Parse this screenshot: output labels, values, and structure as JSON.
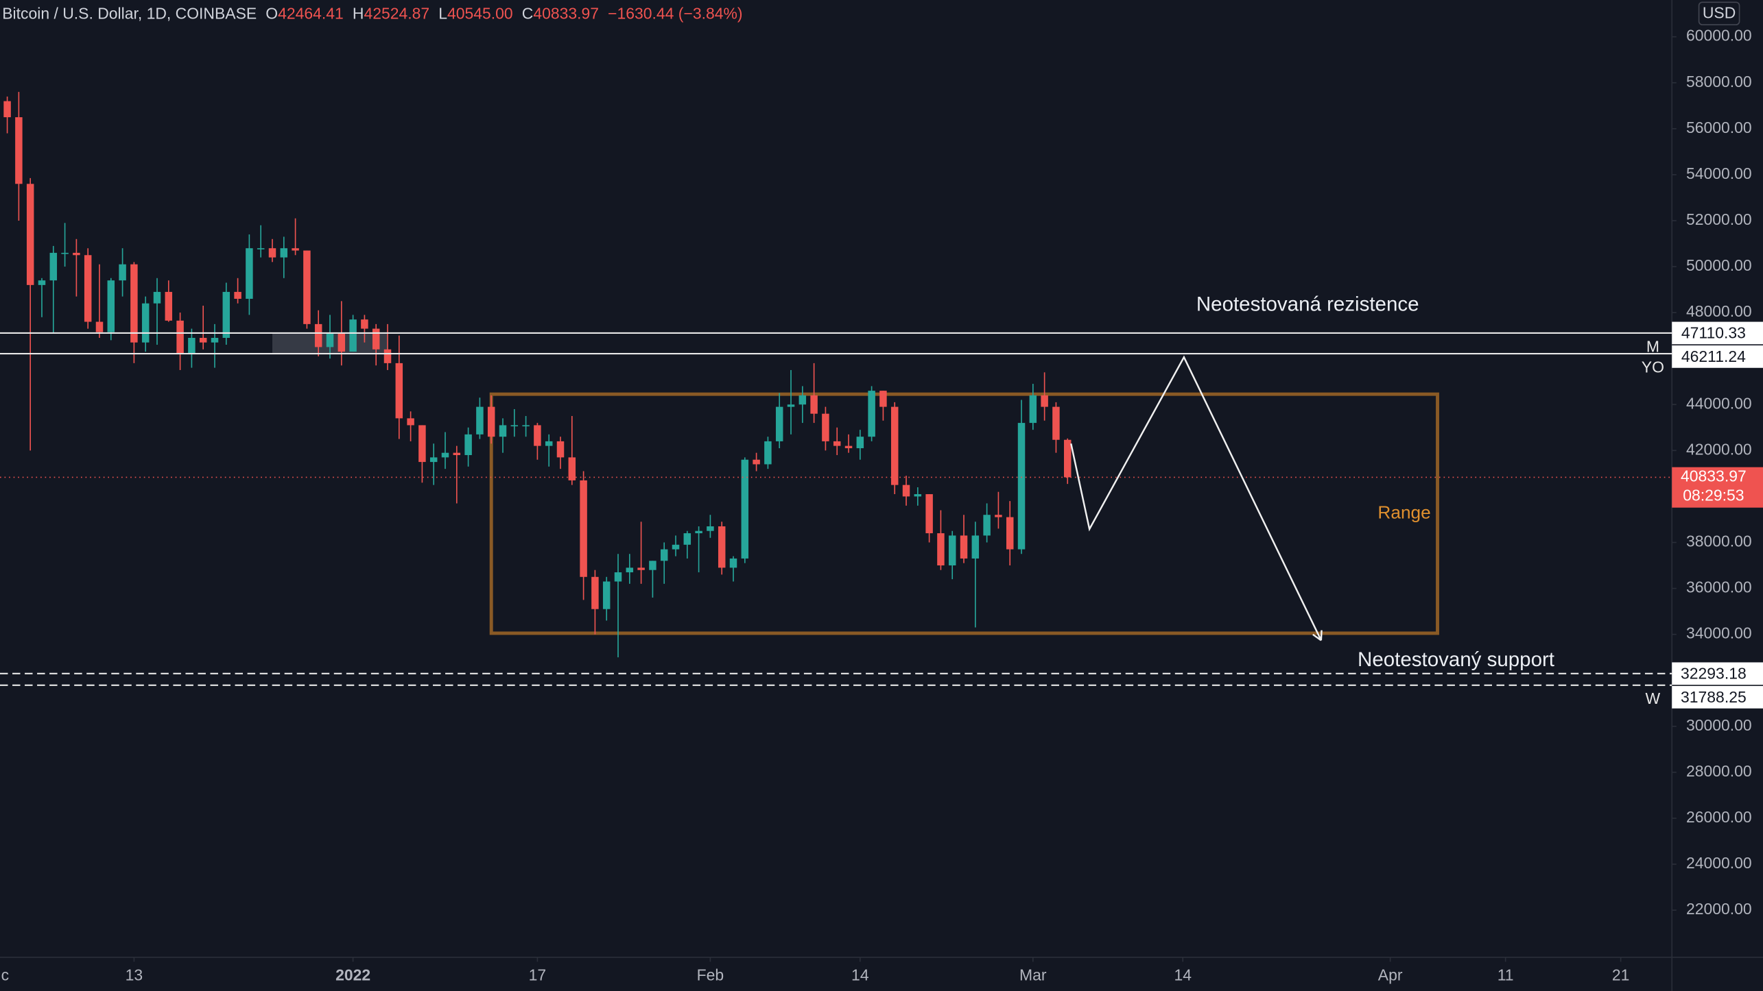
{
  "chart_data": {
    "type": "candlestick",
    "title": "Bitcoin / U.S. Dollar, 1D, COINBASE",
    "ohlc_legend": [
      {
        "key": "O",
        "label": "42464.41"
      },
      {
        "key": "H",
        "label": "42524.87"
      },
      {
        "key": "L",
        "label": "40545.00"
      },
      {
        "key": "C",
        "label": "40833.97"
      }
    ],
    "change": "−1630.44 (−3.84%)",
    "currency": "USD",
    "countdown": "08:29:53",
    "up_color": "#26a69a",
    "down_color": "#ef5350",
    "xlim": [
      -0.63,
      144.44
    ],
    "xticks": [
      {
        "value": -1,
        "label": "c"
      },
      {
        "value": 11,
        "label": "13"
      },
      {
        "value": 30,
        "label": "2022",
        "bold": true
      },
      {
        "value": 46,
        "label": "17"
      },
      {
        "value": 61,
        "label": "Feb"
      },
      {
        "value": 74,
        "label": "14"
      },
      {
        "value": 89,
        "label": "Mar"
      },
      {
        "value": 102,
        "label": "14"
      },
      {
        "value": 120,
        "label": "Apr"
      },
      {
        "value": 130,
        "label": "11"
      },
      {
        "value": 140,
        "label": "21"
      }
    ],
    "ylim": [
      19950,
      61600
    ],
    "yticks": [
      {
        "value": 22000,
        "label": "22000.00"
      },
      {
        "value": 24000,
        "label": "24000.00"
      },
      {
        "value": 26000,
        "label": "26000.00"
      },
      {
        "value": 28000,
        "label": "28000.00"
      },
      {
        "value": 30000,
        "label": "30000.00"
      },
      {
        "value": 34000,
        "label": "34000.00"
      },
      {
        "value": 36000,
        "label": "36000.00"
      },
      {
        "value": 38000,
        "label": "38000.00"
      },
      {
        "value": 42000,
        "label": "42000.00"
      },
      {
        "value": 44000,
        "label": "44000.00"
      },
      {
        "value": 48000,
        "label": "48000.00"
      },
      {
        "value": 50000,
        "label": "50000.00"
      },
      {
        "value": 52000,
        "label": "52000.00"
      },
      {
        "value": 54000,
        "label": "54000.00"
      },
      {
        "value": 56000,
        "label": "56000.00"
      },
      {
        "value": 58000,
        "label": "58000.00"
      },
      {
        "value": 60000,
        "label": "60000.00"
      }
    ],
    "open": [
      57200,
      56500,
      53600,
      49200,
      49400,
      50600,
      50600,
      50500,
      47600,
      47150,
      49400,
      50100,
      46700,
      48400,
      48900,
      47650,
      46200,
      46900,
      46700,
      46900,
      48900,
      48600,
      50800,
      50800,
      50400,
      50800,
      50700,
      47500,
      46500,
      47100,
      46300,
      47700,
      47300,
      46400,
      45800,
      43400,
      43100,
      41500,
      41700,
      41900,
      41800,
      42700,
      43900,
      42600,
      43100,
      43100,
      43100,
      42200,
      42400,
      41700,
      40700,
      36500,
      35100,
      36300,
      36700,
      36900,
      36800,
      37200,
      37700,
      37900,
      38400,
      38500,
      38700,
      36900,
      37300,
      41600,
      41400,
      42400,
      43900,
      44000,
      44400,
      43600,
      42400,
      42200,
      42100,
      42600,
      44600,
      43900,
      40500,
      40000,
      40100,
      38400,
      37000,
      38300,
      37300,
      38300,
      39200,
      39100,
      37700,
      43200,
      44400,
      43900,
      42464.41
    ],
    "high": [
      57400,
      57600,
      53850,
      49500,
      50900,
      51900,
      51200,
      50800,
      50100,
      49500,
      50800,
      50200,
      48700,
      49500,
      49400,
      48000,
      47300,
      48300,
      47500,
      49300,
      49500,
      51400,
      51800,
      51200,
      51300,
      52100,
      50700,
      48100,
      47900,
      48500,
      47900,
      47900,
      47500,
      47500,
      47000,
      43700,
      43100,
      42300,
      42800,
      42200,
      43000,
      44300,
      44400,
      43400,
      43800,
      43500,
      43200,
      42700,
      42600,
      43500,
      41100,
      36800,
      36500,
      37500,
      37500,
      38900,
      37200,
      38000,
      38300,
      38500,
      38700,
      39200,
      38900,
      37400,
      41700,
      41900,
      42600,
      44500,
      45500,
      44800,
      45800,
      43900,
      43000,
      42700,
      42900,
      44800,
      44600,
      44100,
      40900,
      40400,
      40100,
      39400,
      38500,
      39200,
      38900,
      39700,
      40200,
      39800,
      44200,
      44900,
      45400,
      44100,
      42524.87
    ],
    "low": [
      55800,
      52000,
      42000,
      47800,
      47100,
      50000,
      48700,
      47300,
      46900,
      46800,
      48700,
      45800,
      46300,
      46600,
      47600,
      45500,
      45600,
      46400,
      45600,
      46600,
      48400,
      47900,
      50400,
      50200,
      49500,
      50500,
      47300,
      46100,
      46000,
      45700,
      46300,
      46700,
      45700,
      45500,
      42500,
      42400,
      40600,
      40500,
      41200,
      39700,
      41300,
      42500,
      42300,
      41900,
      42600,
      42600,
      41600,
      41300,
      41200,
      40500,
      35500,
      34000,
      34600,
      33000,
      36200,
      36200,
      35600,
      36200,
      37400,
      37300,
      36700,
      38200,
      36600,
      36300,
      37100,
      41100,
      41200,
      42100,
      42700,
      43200,
      43200,
      42000,
      41800,
      41900,
      41600,
      42400,
      43300,
      40100,
      39600,
      39600,
      38000,
      36800,
      36400,
      37100,
      34300,
      38000,
      38600,
      37000,
      37500,
      42900,
      43300,
      41900,
      40545
    ],
    "close": [
      56500,
      53600,
      49200,
      49400,
      50600,
      50600,
      50500,
      47600,
      47150,
      49400,
      50100,
      46700,
      48400,
      48900,
      47650,
      46200,
      46900,
      46700,
      46900,
      48900,
      48600,
      50800,
      50800,
      50400,
      50800,
      50700,
      47500,
      46500,
      47100,
      46300,
      47700,
      47300,
      46400,
      45800,
      43400,
      43100,
      41500,
      41700,
      41900,
      41800,
      42700,
      43900,
      42600,
      43100,
      43100,
      43100,
      42200,
      42400,
      41700,
      40700,
      36500,
      35100,
      36300,
      36700,
      36900,
      36800,
      37200,
      37700,
      37900,
      38400,
      38500,
      38700,
      36900,
      37300,
      41600,
      41400,
      42400,
      43900,
      44000,
      44400,
      43600,
      42400,
      42200,
      42100,
      42600,
      44600,
      43900,
      40500,
      40000,
      40100,
      38400,
      37000,
      38300,
      37300,
      38300,
      39200,
      39100,
      37700,
      43200,
      44400,
      43900,
      42464.41,
      40833.97
    ],
    "levels": [
      {
        "value": 47110.33,
        "marker": "M",
        "style": "solid"
      },
      {
        "value": 46211.24,
        "marker": "YO",
        "style": "solid"
      },
      {
        "value": 32293.18,
        "style": "dashed"
      },
      {
        "value": 31788.25,
        "marker": "W",
        "style": "dashed"
      }
    ],
    "zone_x": [
      23,
      33
    ],
    "resistance_text": "Neotestovaná rezistence",
    "support_text": "Neotestovaný support",
    "range": {
      "label": "Range",
      "x": [
        42,
        124.1
      ],
      "y": [
        34050,
        44450
      ],
      "color": "#8a5a25",
      "label_color": "#e0902e"
    },
    "projection": {
      "x": [
        92.3,
        93.9,
        102.1,
        114
      ],
      "y": [
        42300,
        38580,
        46060,
        33740
      ]
    }
  }
}
